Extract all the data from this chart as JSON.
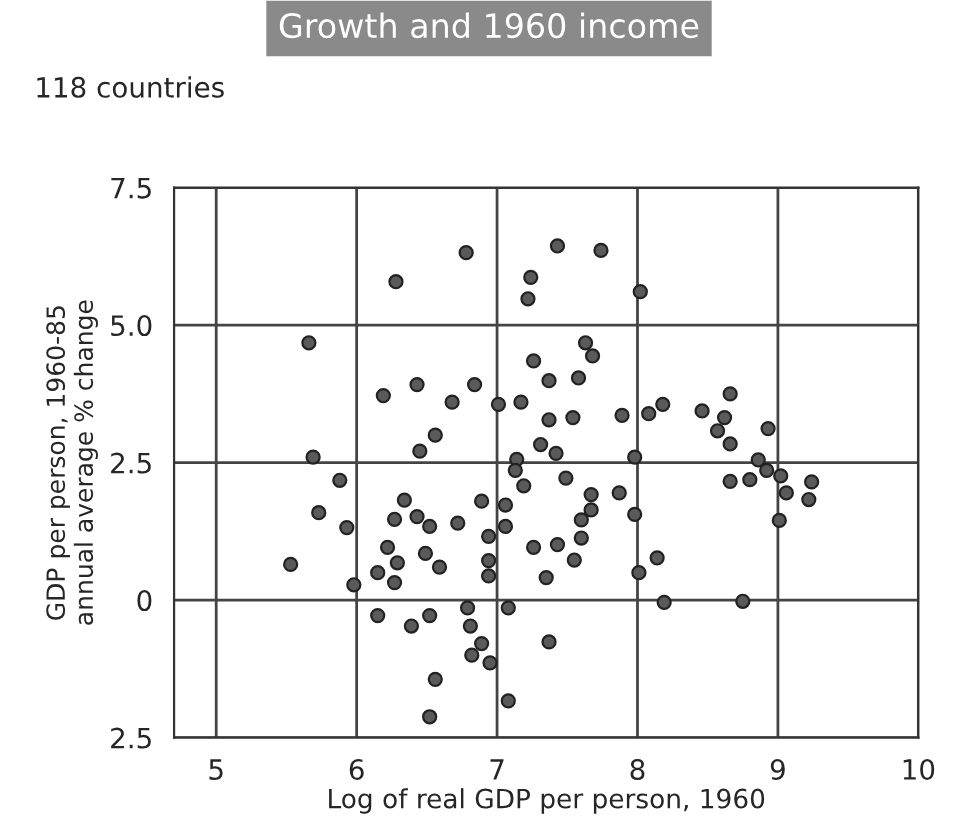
{
  "chart_data": {
    "type": "scatter",
    "title": "Growth and 1960 income",
    "subtitle": "118 countries",
    "xlabel": "Log of real GDP per person, 1960",
    "ylabel": "GDP per person, 1960-85\nannual average % change",
    "xlim": [
      4.7,
      10
    ],
    "xticks": [
      5,
      6,
      7,
      8,
      9,
      10
    ],
    "ylim": [
      -2.5,
      7.5
    ],
    "yticks": [
      {
        "value": -2.5,
        "label": "2.5"
      },
      0,
      2.5,
      {
        "value": 5,
        "label": "5.0"
      },
      7.5
    ],
    "grid": true,
    "marker": "circle",
    "series": [
      {
        "color": "#5a5a5a",
        "x": [
          5.66,
          5.69,
          5.88,
          5.73,
          5.93,
          6.28,
          6.78,
          6.19,
          6.43,
          6.84,
          6.68,
          6.56,
          6.45,
          7.01,
          7.17,
          7.24,
          7.22,
          7.43,
          7.26,
          7.37,
          7.37,
          7.31,
          7.42,
          7.14,
          7.13,
          7.19,
          6.34,
          6.27,
          6.43,
          6.52,
          6.72,
          6.89,
          7.06,
          7.06,
          7.74,
          8.02,
          7.63,
          7.68,
          7.58,
          7.54,
          7.89,
          8.08,
          8.18,
          8.46,
          8.66,
          8.62,
          8.57,
          8.66,
          8.93,
          7.98,
          8.86,
          8.92,
          9.02,
          9.24,
          9.06,
          9.22,
          8.66,
          8.8,
          7.49,
          7.67,
          7.87,
          7.67,
          7.98,
          9.01,
          7.6,
          5.53,
          5.98,
          6.15,
          6.22,
          6.29,
          6.27,
          6.49,
          6.59,
          6.94,
          6.94,
          6.94,
          7.26,
          7.43,
          7.35,
          7.08,
          6.15,
          6.39,
          6.52,
          6.79,
          6.81,
          6.89,
          6.82,
          6.95,
          7.37,
          6.56,
          6.52,
          7.08,
          7.6,
          7.55,
          8.01,
          8.14,
          8.19,
          8.75
        ],
        "values": [
          4.68,
          2.6,
          2.18,
          1.59,
          1.32,
          5.79,
          6.32,
          3.72,
          3.92,
          3.92,
          3.6,
          3.0,
          2.71,
          3.56,
          3.6,
          5.87,
          5.48,
          6.44,
          4.35,
          3.99,
          3.28,
          2.83,
          2.67,
          2.56,
          2.36,
          2.08,
          1.82,
          1.47,
          1.52,
          1.34,
          1.4,
          1.8,
          1.73,
          1.34,
          6.36,
          5.61,
          4.68,
          4.44,
          4.04,
          3.32,
          3.36,
          3.39,
          3.56,
          3.44,
          3.75,
          3.32,
          3.08,
          2.84,
          3.12,
          2.6,
          2.55,
          2.36,
          2.26,
          2.15,
          1.95,
          1.83,
          2.16,
          2.19,
          2.22,
          1.92,
          1.95,
          1.64,
          1.56,
          1.45,
          1.46,
          0.65,
          0.28,
          0.5,
          0.96,
          0.68,
          0.32,
          0.85,
          0.6,
          1.16,
          0.72,
          0.44,
          0.96,
          1.01,
          0.41,
          -0.14,
          -0.28,
          -0.47,
          -0.28,
          -0.14,
          -0.47,
          -0.79,
          -1.0,
          -1.14,
          -0.76,
          -1.44,
          -2.12,
          -1.83,
          1.13,
          0.73,
          0.5,
          0.77,
          -0.04,
          -0.02
        ]
      }
    ]
  }
}
